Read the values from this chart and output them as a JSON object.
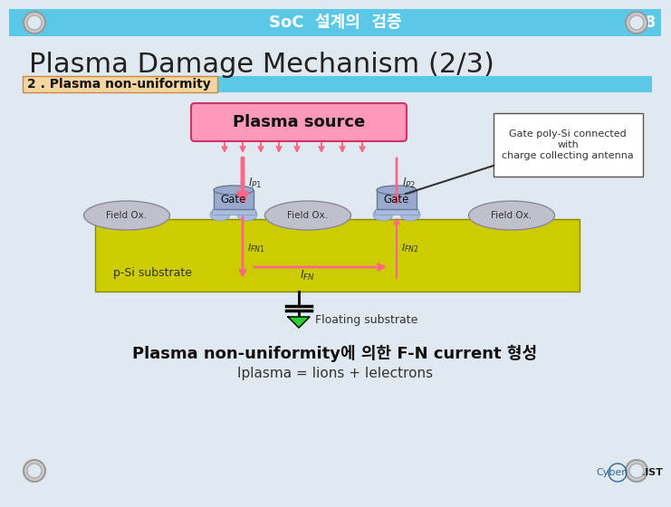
{
  "title": "Plasma Damage Mechanism (2/3)",
  "subtitle": "2 . Plasma non-uniformity",
  "header_text": "SoC  설계의  검증",
  "slide_number": "58",
  "plasma_source_label": "Plasma source",
  "callout_text": "Gate poly-Si connected\nwith\ncharge collecting antenna",
  "substrate_label": "p-Si substrate",
  "float_label": "Floating substrate",
  "gate_label": "Gate",
  "field_ox_label": "Field Ox.",
  "bottom_text1": "Plasma non-uniformity에 의한 F-N current 형성",
  "bottom_text2": "Iplasma = Iions + Ielectrons",
  "slide_bg": "#e0e8f0",
  "header_bg": "#5bc8e8"
}
